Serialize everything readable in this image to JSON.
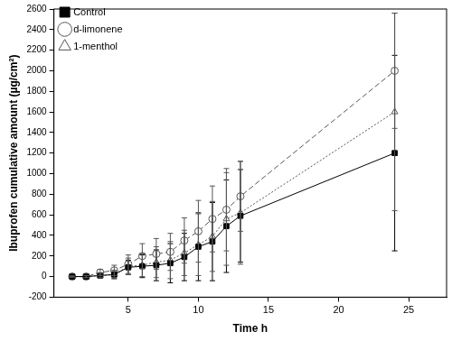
{
  "chart_data": {
    "type": "line",
    "x_label": "Time h",
    "y_label": "Ibuprofen cumulative amount (µg/cm²)",
    "x": [
      1,
      2,
      3,
      4,
      5,
      6,
      7,
      8,
      9,
      10,
      11,
      12,
      13,
      24
    ],
    "series": [
      {
        "name": "Control",
        "color": "#000000",
        "marker": "filled_square",
        "line_style": "solid",
        "values": [
          0,
          0,
          10,
          20,
          90,
          100,
          110,
          130,
          190,
          290,
          340,
          490,
          590,
          1200
        ],
        "errors": [
          5,
          10,
          20,
          40,
          70,
          110,
          150,
          190,
          230,
          330,
          380,
          450,
          450,
          950
        ]
      },
      {
        "name": "d-limonene",
        "color": "#555555",
        "marker": "open_circle",
        "line_style": "dashed",
        "values": [
          0,
          0,
          40,
          60,
          120,
          200,
          220,
          240,
          350,
          440,
          560,
          650,
          780,
          2000
        ],
        "errors": [
          5,
          10,
          30,
          50,
          90,
          120,
          150,
          180,
          220,
          300,
          320,
          400,
          340,
          560
        ]
      },
      {
        "name": "1-menthol",
        "color": "#555555",
        "marker": "open_triangle",
        "line_style": "dotted",
        "values": [
          0,
          0,
          10,
          20,
          100,
          110,
          140,
          160,
          230,
          310,
          390,
          560,
          620,
          1600
        ],
        "errors": [
          5,
          10,
          20,
          40,
          80,
          110,
          150,
          180,
          220,
          300,
          340,
          450,
          500,
          960
        ]
      }
    ],
    "xlim": [
      -0.3,
      27.7
    ],
    "xticks": [
      5,
      10,
      15,
      20,
      25
    ],
    "ylim": [
      -200,
      2600
    ],
    "yticks": [
      -200,
      0,
      200,
      400,
      600,
      800,
      1000,
      1200,
      1400,
      1600,
      1800,
      2000,
      2200,
      2400,
      2600
    ],
    "grid": false,
    "legend": "upper left"
  }
}
